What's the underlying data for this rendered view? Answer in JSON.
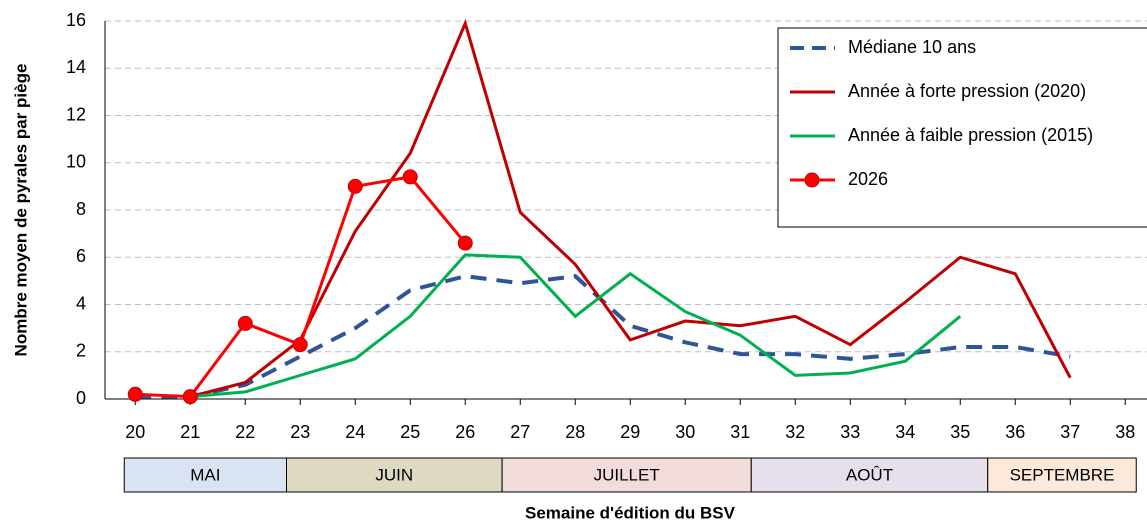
{
  "chart_data": {
    "type": "line",
    "y_label": "Nombre moyen de pyrales par piège",
    "x_label": "Semaine d'édition du BSV",
    "x": [
      20,
      21,
      22,
      23,
      24,
      25,
      26,
      27,
      28,
      29,
      30,
      31,
      32,
      33,
      34,
      35,
      36,
      37
    ],
    "series": [
      {
        "name": "Médiane 10 ans",
        "color": "#2f5597",
        "dash": true,
        "marker": false,
        "values": [
          0.1,
          0.1,
          0.6,
          1.8,
          3.0,
          4.6,
          5.2,
          4.9,
          5.2,
          3.1,
          2.4,
          1.9,
          1.9,
          1.7,
          1.9,
          2.2,
          2.2,
          1.8
        ]
      },
      {
        "name": "Année à forte pression (2020)",
        "color": "#c00000",
        "dash": false,
        "marker": false,
        "values": [
          null,
          0.1,
          0.7,
          2.5,
          7.1,
          10.4,
          15.9,
          7.9,
          5.7,
          2.5,
          3.3,
          3.1,
          3.5,
          2.3,
          4.1,
          6.0,
          5.3,
          0.9
        ]
      },
      {
        "name": "Année à faible pression (2015)",
        "color": "#00b050",
        "dash": false,
        "marker": false,
        "values": [
          null,
          0.1,
          0.3,
          1.0,
          1.7,
          3.5,
          6.1,
          6.0,
          3.5,
          5.3,
          3.7,
          2.7,
          1.0,
          1.1,
          1.6,
          3.5,
          null,
          null
        ]
      },
      {
        "name": "2026",
        "color": "#ff0000",
        "dash": false,
        "marker": true,
        "values": [
          0.2,
          0.1,
          3.2,
          2.3,
          9.0,
          9.4,
          6.6,
          null,
          null,
          null,
          null,
          null,
          null,
          null,
          null,
          null,
          null,
          null
        ]
      }
    ],
    "xlim": [
      19.45,
      38.45
    ],
    "xticks": [
      20,
      21,
      22,
      23,
      24,
      25,
      26,
      27,
      28,
      29,
      30,
      31,
      32,
      33,
      34,
      35,
      36,
      37,
      38
    ],
    "ylim": [
      0,
      16
    ],
    "yticks": [
      0,
      2,
      4,
      6,
      8,
      10,
      12,
      14,
      16
    ],
    "grid": true,
    "legend": "top-right",
    "months": [
      {
        "label": "MAI",
        "start": 19.8,
        "end": 22.75,
        "color": "#dae3f3"
      },
      {
        "label": "JUIN",
        "start": 22.75,
        "end": 26.67,
        "color": "#ddd9c3"
      },
      {
        "label": "JUILLET",
        "start": 26.67,
        "end": 31.2,
        "color": "#f2dcdb"
      },
      {
        "label": "AOÛT",
        "start": 31.2,
        "end": 35.5,
        "color": "#e6e0ec"
      },
      {
        "label": "SEPTEMBRE",
        "start": 35.5,
        "end": 38.2,
        "color": "#fde9d9"
      }
    ]
  }
}
